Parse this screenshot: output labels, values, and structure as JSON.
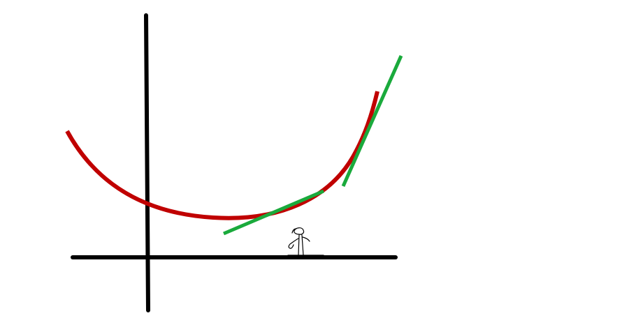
{
  "colors": {
    "background": "#ffffff",
    "axes": "#000000",
    "curve": "#c00000",
    "tangents": "#1aaa3c",
    "figure": "#000000"
  },
  "diagram": {
    "description_elements": [
      "axes",
      "curve",
      "tangent-lines",
      "stick-figure"
    ],
    "curve_shape": "upward-opening convex curve",
    "tangent_count": 2
  }
}
